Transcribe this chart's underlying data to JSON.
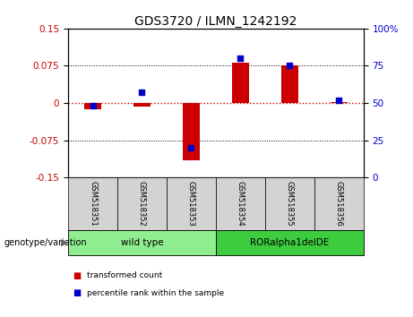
{
  "title": "GDS3720 / ILMN_1242192",
  "samples": [
    "GSM518351",
    "GSM518352",
    "GSM518353",
    "GSM518354",
    "GSM518355",
    "GSM518356"
  ],
  "red_values": [
    -0.012,
    -0.008,
    -0.115,
    0.082,
    0.075,
    0.001
  ],
  "blue_values_pct": [
    48,
    57,
    20,
    80,
    75,
    52
  ],
  "ylim_left": [
    -0.15,
    0.15
  ],
  "ylim_right": [
    0,
    100
  ],
  "yticks_left": [
    -0.15,
    -0.075,
    0,
    0.075,
    0.15
  ],
  "yticks_right": [
    0,
    25,
    50,
    75,
    100
  ],
  "ytick_labels_right": [
    "0",
    "25",
    "50",
    "75",
    "100%"
  ],
  "red_color": "#CC0000",
  "blue_color": "#0000CC",
  "genotype_groups": [
    {
      "label": "wild type",
      "start": 0,
      "end": 3,
      "color": "#90EE90"
    },
    {
      "label": "RORalpha1delDE",
      "start": 3,
      "end": 6,
      "color": "#3DCC3D"
    }
  ],
  "legend_items": [
    {
      "label": "transformed count",
      "color": "#CC0000"
    },
    {
      "label": "percentile rank within the sample",
      "color": "#0000CC"
    }
  ],
  "genotype_label": "genotype/variation",
  "bar_width": 0.35,
  "blue_square_size": 18,
  "hline_zero_color": "#CC0000",
  "background_plot": "#ffffff",
  "xlabel_box_color": "#d3d3d3",
  "title_fontsize": 10,
  "tick_fontsize": 7.5
}
